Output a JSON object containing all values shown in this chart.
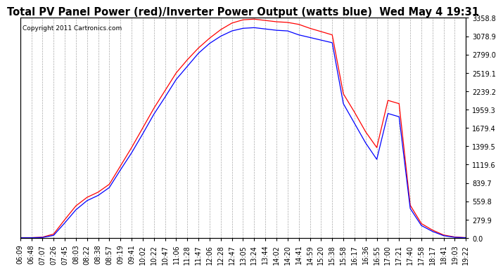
{
  "title": "Total PV Panel Power (red)/Inverter Power Output (watts blue)  Wed May 4 19:31",
  "copyright": "Copyright 2011 Cartronics.com",
  "bg_color": "#ffffff",
  "plot_bg_color": "#ffffff",
  "grid_color": "#aaaaaa",
  "line_red": "#ff0000",
  "line_blue": "#0000ff",
  "yticks": [
    0.0,
    279.9,
    559.8,
    839.7,
    1119.6,
    1399.5,
    1679.4,
    1959.3,
    2239.2,
    2519.1,
    2799.0,
    3078.9,
    3358.8
  ],
  "xtick_labels": [
    "06:09",
    "06:48",
    "07:07",
    "07:26",
    "07:45",
    "08:03",
    "08:22",
    "08:38",
    "08:57",
    "09:19",
    "09:41",
    "10:02",
    "10:22",
    "10:47",
    "11:06",
    "11:28",
    "11:47",
    "12:06",
    "12:28",
    "12:47",
    "13:05",
    "13:24",
    "13:44",
    "14:02",
    "14:20",
    "14:41",
    "14:59",
    "15:20",
    "15:38",
    "15:58",
    "16:17",
    "16:36",
    "16:55",
    "17:00",
    "17:21",
    "17:40",
    "17:58",
    "18:17",
    "18:41",
    "19:03",
    "19:22"
  ],
  "red_values": [
    5,
    5,
    12,
    60,
    280,
    490,
    620,
    700,
    820,
    1100,
    1380,
    1680,
    1980,
    2250,
    2520,
    2720,
    2900,
    3050,
    3180,
    3280,
    3330,
    3340,
    3320,
    3300,
    3290,
    3260,
    3200,
    3150,
    3100,
    2200,
    1920,
    1620,
    1380,
    2100,
    2050,
    500,
    220,
    120,
    45,
    15,
    5
  ],
  "blue_values": [
    3,
    3,
    8,
    40,
    230,
    430,
    570,
    650,
    770,
    1040,
    1300,
    1590,
    1890,
    2150,
    2420,
    2620,
    2820,
    2970,
    3080,
    3160,
    3200,
    3210,
    3190,
    3170,
    3160,
    3100,
    3060,
    3020,
    2980,
    2050,
    1750,
    1450,
    1200,
    1900,
    1850,
    450,
    190,
    100,
    35,
    10,
    3
  ],
  "ylim": [
    0.0,
    3358.8
  ],
  "title_fontsize": 10.5,
  "tick_fontsize": 7,
  "copyright_fontsize": 6.5
}
